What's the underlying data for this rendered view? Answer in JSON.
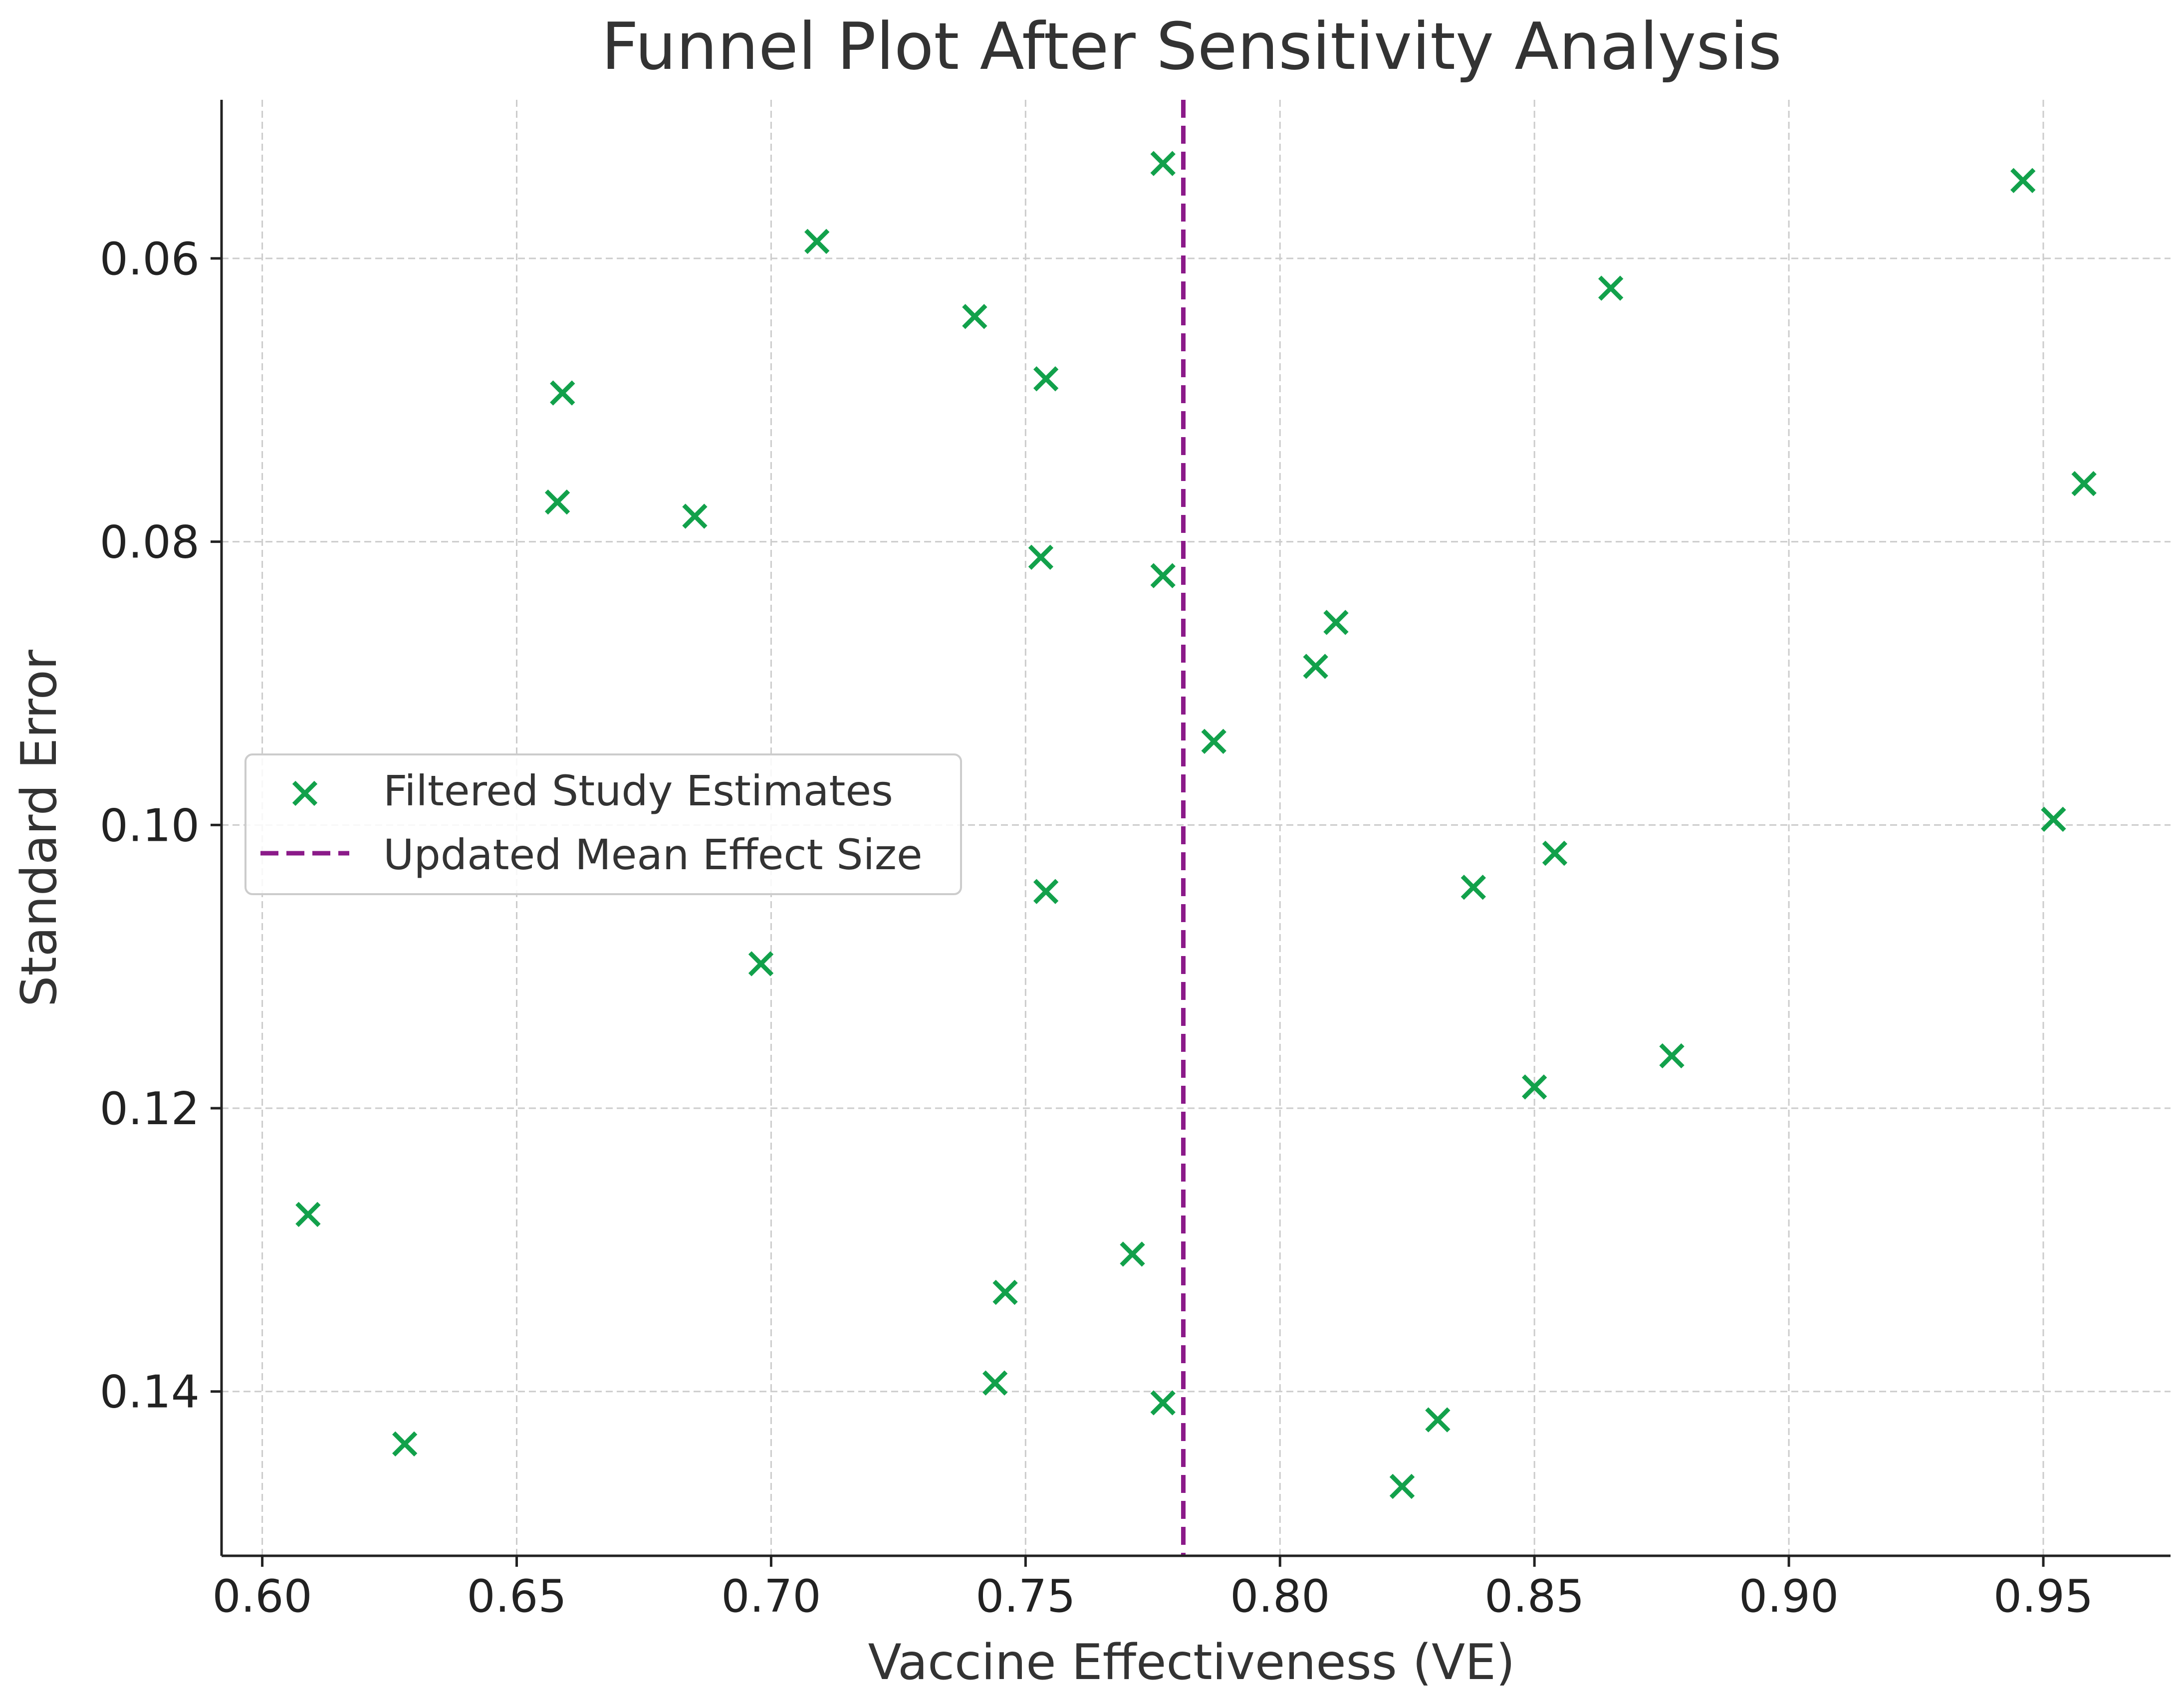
{
  "chart_data": {
    "type": "scatter",
    "title": "Funnel Plot After Sensitivity Analysis",
    "xlabel": "Vaccine Effectiveness (VE)",
    "ylabel": "Standard Error",
    "xlim": [
      0.592,
      0.975
    ],
    "ylim": [
      0.0488,
      0.1516
    ],
    "y_inverted": true,
    "grid": true,
    "x_ticks": [
      0.6,
      0.65,
      0.7,
      0.75,
      0.8,
      0.85,
      0.9,
      0.95
    ],
    "x_tick_labels": [
      "0.60",
      "0.65",
      "0.70",
      "0.75",
      "0.80",
      "0.85",
      "0.90",
      "0.95"
    ],
    "y_ticks": [
      0.06,
      0.08,
      0.1,
      0.12,
      0.14
    ],
    "y_tick_labels": [
      "0.06",
      "0.08",
      "0.10",
      "0.12",
      "0.14"
    ],
    "legend": {
      "placement": "center-left"
    },
    "series": [
      {
        "name": "Filtered Study Estimates",
        "kind": "scatter",
        "marker": "x",
        "color": "#12a14b",
        "points": [
          {
            "x": 0.777,
            "y": 0.0533
          },
          {
            "x": 0.946,
            "y": 0.0545
          },
          {
            "x": 0.709,
            "y": 0.0588
          },
          {
            "x": 0.865,
            "y": 0.0621
          },
          {
            "x": 0.74,
            "y": 0.0641
          },
          {
            "x": 0.754,
            "y": 0.0685
          },
          {
            "x": 0.659,
            "y": 0.0695
          },
          {
            "x": 0.658,
            "y": 0.0772
          },
          {
            "x": 0.685,
            "y": 0.0782
          },
          {
            "x": 0.958,
            "y": 0.0759
          },
          {
            "x": 0.753,
            "y": 0.0811
          },
          {
            "x": 0.777,
            "y": 0.0824
          },
          {
            "x": 0.811,
            "y": 0.0857
          },
          {
            "x": 0.807,
            "y": 0.0888
          },
          {
            "x": 0.787,
            "y": 0.0941
          },
          {
            "x": 0.952,
            "y": 0.0996
          },
          {
            "x": 0.854,
            "y": 0.102
          },
          {
            "x": 0.838,
            "y": 0.1044
          },
          {
            "x": 0.754,
            "y": 0.1047
          },
          {
            "x": 0.698,
            "y": 0.1098
          },
          {
            "x": 0.877,
            "y": 0.1163
          },
          {
            "x": 0.85,
            "y": 0.1185
          },
          {
            "x": 0.609,
            "y": 0.1275
          },
          {
            "x": 0.771,
            "y": 0.1303
          },
          {
            "x": 0.746,
            "y": 0.133
          },
          {
            "x": 0.744,
            "y": 0.1394
          },
          {
            "x": 0.777,
            "y": 0.1408
          },
          {
            "x": 0.831,
            "y": 0.142
          },
          {
            "x": 0.628,
            "y": 0.1437
          },
          {
            "x": 0.824,
            "y": 0.1467
          }
        ]
      },
      {
        "name": "Updated Mean Effect Size",
        "kind": "vline",
        "line_style": "dashed",
        "color": "#8b1a89",
        "x": 0.781
      }
    ]
  }
}
